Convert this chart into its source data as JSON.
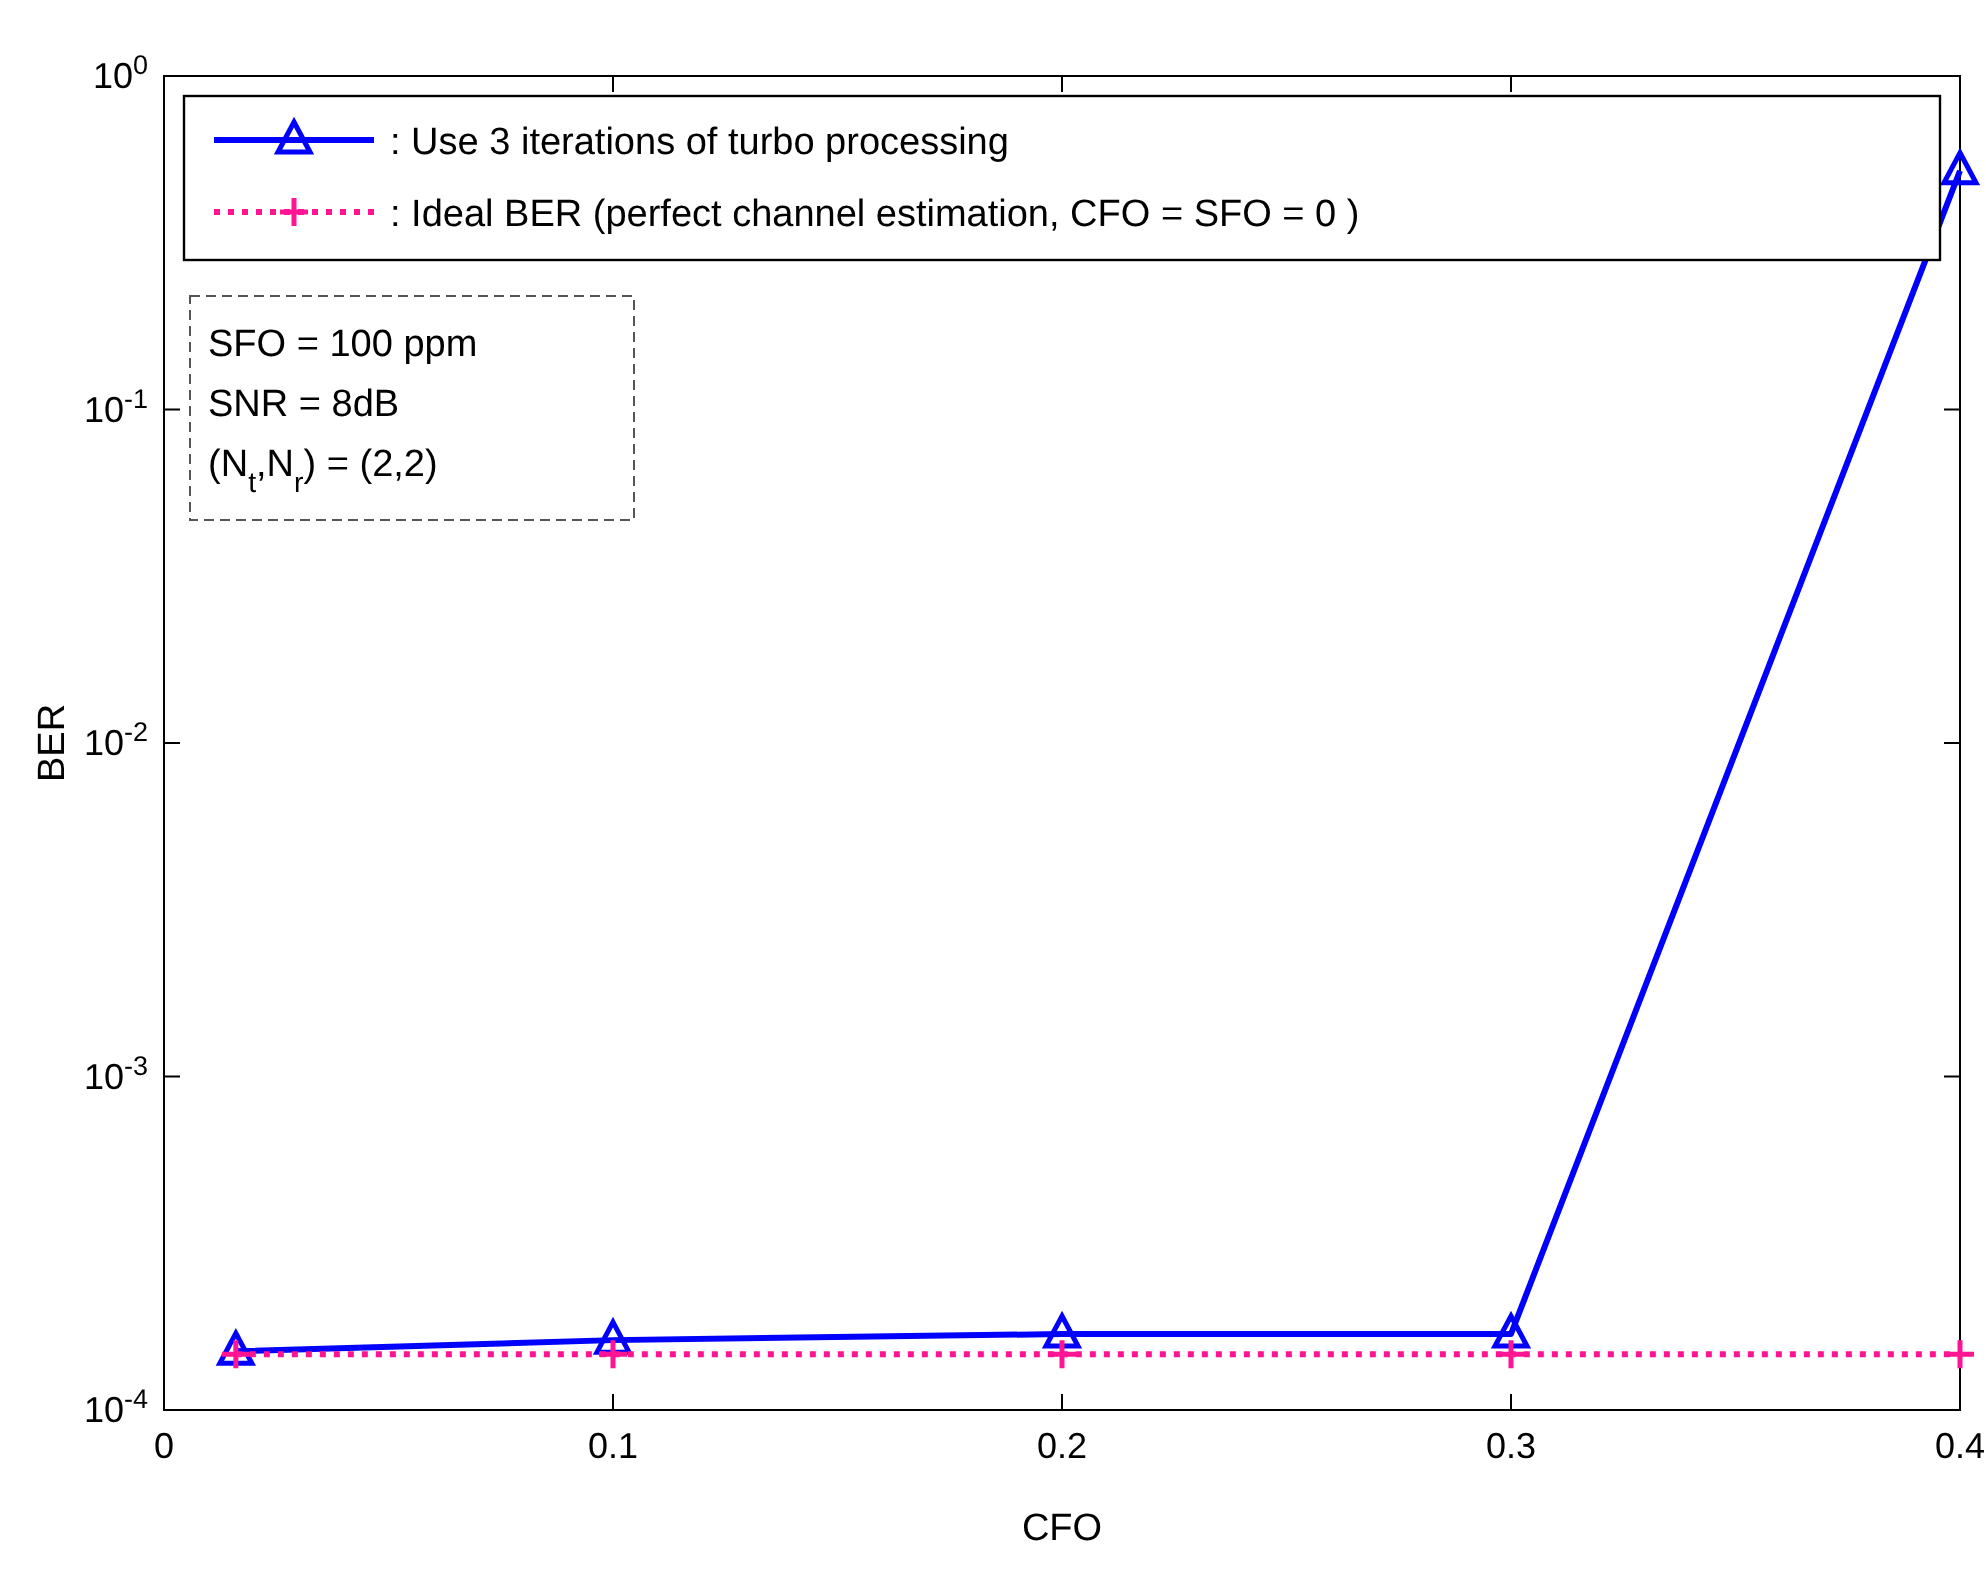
{
  "chart_data": {
    "type": "line",
    "xlabel": "CFO",
    "ylabel": "BER",
    "log": "y",
    "xlim": [
      0,
      0.4
    ],
    "ylim": [
      0.0001,
      1
    ],
    "xticks": [
      0,
      0.1,
      0.2,
      0.3,
      0.4
    ],
    "yticks": [
      {
        "value": 0.0001,
        "label": "10$^{-4}$"
      },
      {
        "value": 0.001,
        "label": "10$^{-3}$"
      },
      {
        "value": 0.01,
        "label": "10$^{-2}$"
      },
      {
        "value": 0.1,
        "label": "10$^{-1}$"
      },
      {
        "value": 1,
        "label": "10$^{0}$"
      }
    ],
    "x": [
      0.016,
      0.1,
      0.2,
      0.3,
      0.4
    ],
    "series": [
      {
        "name": ": Use 3 iterations of turbo processing",
        "color": "#0000ff",
        "values": [
          0.00015,
          0.000162,
          0.000169,
          0.000169,
          0.52
        ],
        "marker": "triangle",
        "line_style": "solid"
      },
      {
        "name": ": Ideal BER (perfect channel estimation, CFO = SFO = 0 )",
        "color": "#ff1493",
        "values": [
          0.000147,
          0.000147,
          0.000147,
          0.000147,
          0.000147
        ],
        "marker": "cross",
        "line_style": "dotted"
      }
    ],
    "legend": "top",
    "grid": false,
    "annotations": [
      "SFO = 100 ppm",
      "SNR = 8dB",
      "(N$_{t}$,N$_{r}$) = (2,2)"
    ]
  }
}
